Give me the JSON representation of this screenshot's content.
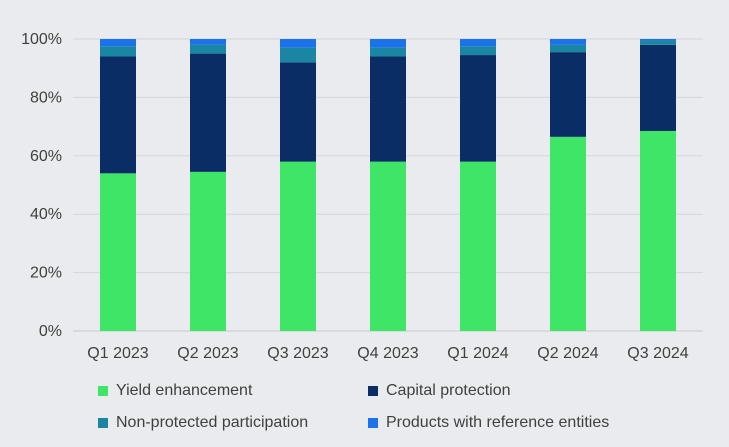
{
  "chart_data": {
    "type": "bar",
    "stacked": true,
    "categories": [
      "Q1 2023",
      "Q2 2023",
      "Q3 2023",
      "Q4 2023",
      "Q1 2024",
      "Q2 2024",
      "Q3 2024"
    ],
    "series": [
      {
        "name": "Yield enhancement",
        "color": "#3ee566",
        "values": [
          54,
          54.5,
          58,
          58,
          58,
          66.5,
          68.5
        ]
      },
      {
        "name": "Capital protection",
        "color": "#0a2d66",
        "values": [
          40,
          40.5,
          34,
          36,
          36.5,
          29,
          29.5
        ]
      },
      {
        "name": "Non-protected participation",
        "color": "#1b86a4",
        "values": [
          3.5,
          3,
          5,
          3,
          3,
          2.5,
          1.5
        ]
      },
      {
        "name": "Products with reference entities",
        "color": "#1a73e8",
        "values": [
          2.5,
          2,
          3,
          3,
          2.5,
          2,
          0.5
        ]
      }
    ],
    "yticks": [
      "0%",
      "20%",
      "40%",
      "60%",
      "80%",
      "100%"
    ],
    "ylim": [
      0,
      100
    ],
    "grid": true,
    "legend_position": "bottom"
  }
}
